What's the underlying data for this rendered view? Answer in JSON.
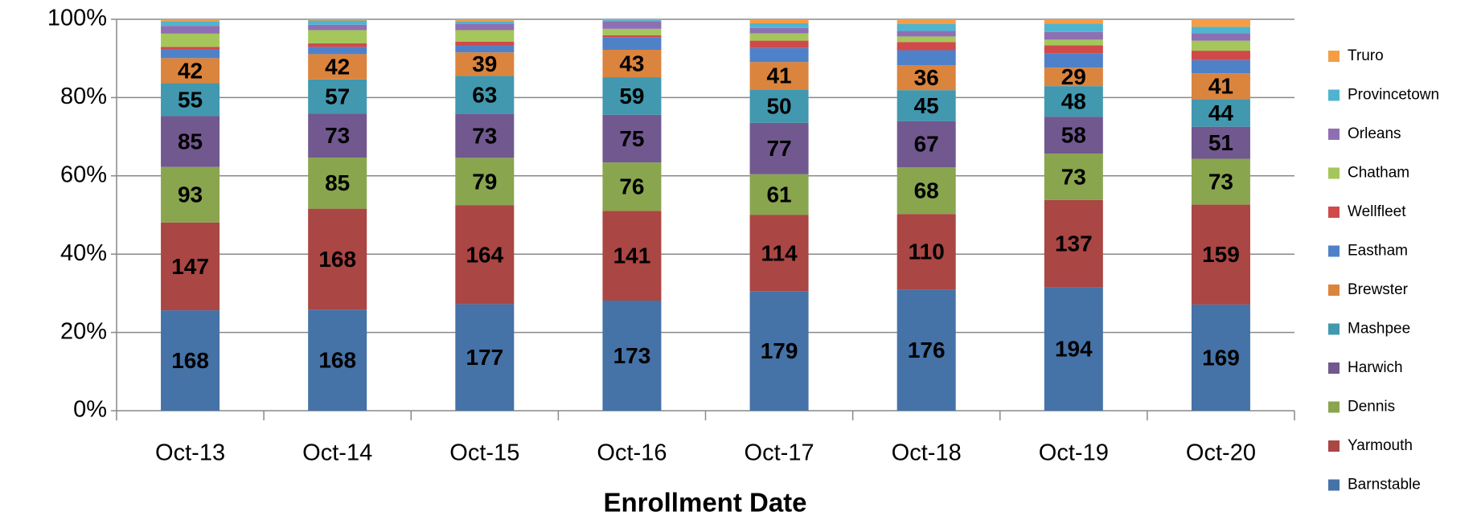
{
  "chart_data": {
    "type": "stacked_bar_100",
    "x_label": "Enrollment Date",
    "categories": [
      "Oct-13",
      "Oct-14",
      "Oct-15",
      "Oct-16",
      "Oct-17",
      "Oct-18",
      "Oct-19",
      "Oct-20"
    ],
    "series": [
      {
        "name": "Barnstable",
        "color": "#4572a7",
        "values": [
          168,
          168,
          177,
          173,
          179,
          176,
          194,
          169
        ]
      },
      {
        "name": "Yarmouth",
        "color": "#aa4643",
        "values": [
          147,
          168,
          164,
          141,
          114,
          110,
          137,
          159
        ]
      },
      {
        "name": "Dennis",
        "color": "#89a54e",
        "values": [
          93,
          85,
          79,
          76,
          61,
          68,
          73,
          73
        ]
      },
      {
        "name": "Harwich",
        "color": "#71588f",
        "values": [
          85,
          73,
          73,
          75,
          77,
          67,
          58,
          51
        ]
      },
      {
        "name": "Mashpee",
        "color": "#4198af",
        "values": [
          55,
          57,
          63,
          59,
          50,
          45,
          48,
          44
        ]
      },
      {
        "name": "Brewster",
        "color": "#db843d",
        "values": [
          42,
          42,
          39,
          43,
          41,
          36,
          29,
          41
        ]
      },
      {
        "name": "Eastham",
        "color": "#4f81c9",
        "values": [
          14,
          12,
          11,
          20,
          21,
          22,
          22,
          21
        ]
      },
      {
        "name": "Wellfleet",
        "color": "#d04a4a",
        "values": [
          5,
          6,
          7,
          3,
          11,
          12,
          13,
          15
        ]
      },
      {
        "name": "Chatham",
        "color": "#a5c65a",
        "values": [
          22,
          22,
          19,
          10,
          11,
          8,
          9,
          16
        ]
      },
      {
        "name": "Orleans",
        "color": "#8e6fb3",
        "values": [
          13,
          9,
          10,
          12,
          8,
          8,
          12,
          12
        ]
      },
      {
        "name": "Provincetown",
        "color": "#4fb4cf",
        "values": [
          8,
          7,
          5,
          2,
          7,
          10,
          13,
          10
        ]
      },
      {
        "name": "Truro",
        "color": "#f59d45",
        "values": [
          3,
          2,
          3,
          1,
          6,
          7,
          7,
          12
        ]
      }
    ],
    "ylim": [
      0,
      100
    ],
    "yticks": [
      {
        "value": 0,
        "label": "0%"
      },
      {
        "value": 20,
        "label": "20%"
      },
      {
        "value": 40,
        "label": "40%"
      },
      {
        "value": 60,
        "label": "60%"
      },
      {
        "value": 80,
        "label": "80%"
      },
      {
        "value": 100,
        "label": "100%"
      }
    ],
    "grid": true,
    "legend": "right"
  }
}
